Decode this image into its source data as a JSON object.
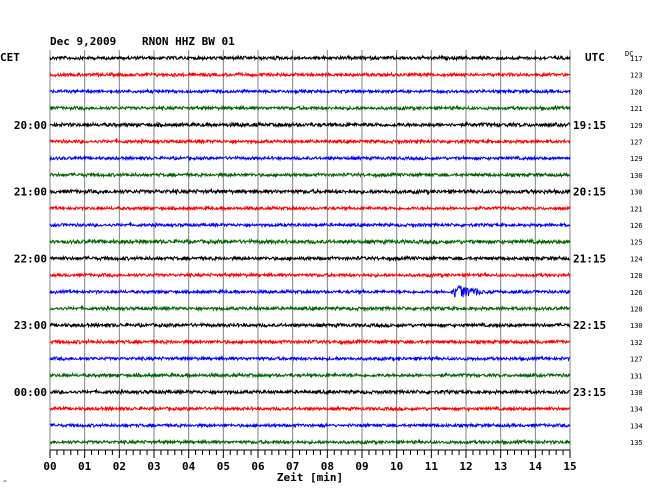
{
  "header": {
    "date": "Dec 9,2009",
    "station": "RNON HHZ BW 01"
  },
  "chart_data": {
    "type": "line",
    "title": "Dec 9,2009   RNON HHZ BW 01",
    "xlabel": "Zeit [min]",
    "left_axis_label": "CET",
    "right_axis_label": "UTC",
    "dc_label": "DC",
    "x_range": [
      0,
      15
    ],
    "x_ticks": [
      "00",
      "01",
      "02",
      "03",
      "04",
      "05",
      "06",
      "07",
      "08",
      "09",
      "10",
      "11",
      "12",
      "13",
      "14",
      "15"
    ],
    "grid": true,
    "trace_colors": [
      "#000000",
      "#ff0000",
      "#0000ff",
      "#006400"
    ],
    "left_time_labels": [
      {
        "row": 4,
        "text": "20:00"
      },
      {
        "row": 8,
        "text": "21:00"
      },
      {
        "row": 12,
        "text": "22:00"
      },
      {
        "row": 16,
        "text": "23:00"
      },
      {
        "row": 20,
        "text": "00:00"
      }
    ],
    "right_time_labels": [
      {
        "row": 4,
        "text": "19:15"
      },
      {
        "row": 8,
        "text": "20:15"
      },
      {
        "row": 12,
        "text": "21:15"
      },
      {
        "row": 16,
        "text": "22:15"
      },
      {
        "row": 20,
        "text": "23:15"
      }
    ],
    "dc_values": [
      "117",
      "123",
      "120",
      "121",
      "129",
      "127",
      "129",
      "130",
      "130",
      "121",
      "126",
      "125",
      "124",
      "128",
      "126",
      "128",
      "130",
      "132",
      "127",
      "131",
      "130",
      "134",
      "134",
      "135"
    ],
    "noise_level": [
      0.9,
      0.85,
      0.8,
      0.85,
      1.0,
      0.85,
      0.8,
      0.85,
      1.0,
      0.8,
      0.8,
      1.0,
      0.9,
      0.85,
      0.8,
      0.85,
      0.9,
      0.9,
      0.85,
      0.85,
      0.9,
      0.85,
      0.8,
      0.85
    ],
    "events": [
      {
        "row": 14,
        "start_min": 11.5,
        "end_min": 13.3,
        "amplitude": 8
      },
      {
        "row": 22,
        "start_min": 7.7,
        "end_min": 8.6,
        "amplitude": 2.2
      }
    ]
  }
}
